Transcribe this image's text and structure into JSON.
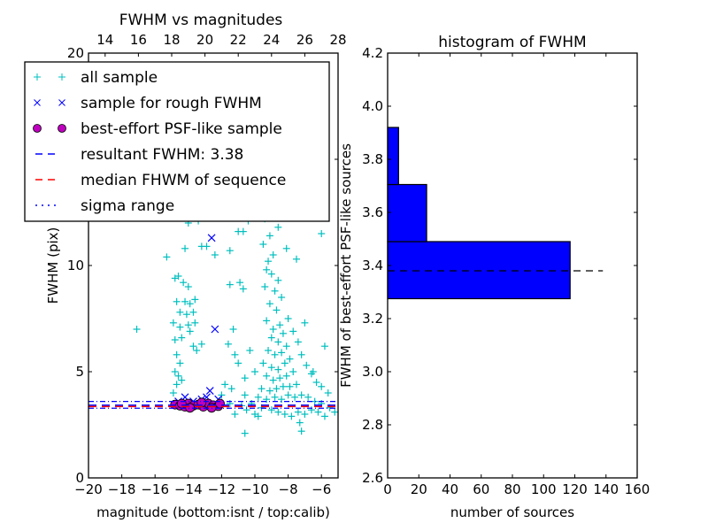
{
  "colors": {
    "all_sample": "#00bfbf",
    "rough_sample": "#0000ff",
    "psf_sample": "#bf00bf",
    "resultant_line": "#0000ff",
    "median_line": "#ff0000",
    "sigma_line": "#0000ff",
    "hist_bar": "#0000ff",
    "hist_line": "#000000"
  },
  "chart_data": [
    {
      "type": "scatter",
      "title": "FWHM vs magnitudes",
      "xlabel": "magnitude (bottom:isnt / top:calib)",
      "ylabel": "FWHM (pix)",
      "xlim": [
        -20,
        -5
      ],
      "ylim": [
        0,
        20
      ],
      "xticks": [
        "−20",
        "−18",
        "−16",
        "−14",
        "−12",
        "−10",
        "−8",
        "−6"
      ],
      "xtick_values": [
        -20,
        -18,
        -16,
        -14,
        -12,
        -10,
        -8,
        -6
      ],
      "yticks": [
        "0",
        "5",
        "10",
        "15",
        "20"
      ],
      "ytick_values": [
        0,
        5,
        10,
        15,
        20
      ],
      "top_xlim": [
        13,
        28
      ],
      "top_xticks": [
        "14",
        "16",
        "18",
        "20",
        "22",
        "24",
        "26",
        "28"
      ],
      "top_xtick_values": [
        14,
        16,
        18,
        20,
        22,
        24,
        26,
        28
      ],
      "legend_position": "upper-left",
      "legend": [
        {
          "label": "all sample",
          "marker": "plus",
          "color_key": "all_sample"
        },
        {
          "label": "sample for rough FWHM",
          "marker": "x",
          "color_key": "rough_sample"
        },
        {
          "label": "best-effort PSF-like sample",
          "marker": "circle",
          "color_key": "psf_sample"
        },
        {
          "label": "resultant FWHM: 3.38",
          "marker": "dashed",
          "color_key": "resultant_line"
        },
        {
          "label": "median FHWM of sequence",
          "marker": "dashed",
          "color_key": "median_line"
        },
        {
          "label": "sigma range",
          "marker": "dashdot",
          "color_key": "sigma_line"
        }
      ],
      "hlines": {
        "resultant": 3.38,
        "median": 3.38,
        "sigma_low": 3.28,
        "sigma_high": 3.6
      },
      "series": [
        {
          "name": "all sample",
          "note": "approximate representative points",
          "points": [
            [
              -17.1,
              7.0
            ],
            [
              -15.3,
              10.4
            ],
            [
              -14.2,
              10.8
            ],
            [
              -14.0,
              12.0
            ],
            [
              -13.4,
              12.1
            ],
            [
              -13.2,
              10.9
            ],
            [
              -12.9,
              10.9
            ],
            [
              -12.4,
              10.5
            ],
            [
              -11.5,
              10.7
            ],
            [
              -11.0,
              11.6
            ],
            [
              -10.7,
              11.6
            ],
            [
              -10.4,
              12.1
            ],
            [
              -9.4,
              12.7
            ],
            [
              -8.6,
              11.8
            ],
            [
              -8.1,
              10.8
            ],
            [
              -7.5,
              10.3
            ],
            [
              -6.0,
              11.5
            ],
            [
              -14.8,
              9.4
            ],
            [
              -14.6,
              9.5
            ],
            [
              -14.3,
              9.2
            ],
            [
              -14.0,
              9.0
            ],
            [
              -14.7,
              8.3
            ],
            [
              -14.2,
              8.3
            ],
            [
              -13.9,
              8.2
            ],
            [
              -13.6,
              8.4
            ],
            [
              -14.5,
              7.8
            ],
            [
              -14.1,
              7.7
            ],
            [
              -13.7,
              7.8
            ],
            [
              -14.9,
              7.3
            ],
            [
              -14.5,
              7.1
            ],
            [
              -14.0,
              7.2
            ],
            [
              -13.6,
              7.3
            ],
            [
              -13.9,
              6.9
            ],
            [
              -14.8,
              6.5
            ],
            [
              -14.4,
              6.6
            ],
            [
              -13.7,
              6.2
            ],
            [
              -13.5,
              6.0
            ],
            [
              -13.2,
              6.3
            ],
            [
              -14.7,
              5.8
            ],
            [
              -14.5,
              5.4
            ],
            [
              -14.8,
              5.0
            ],
            [
              -14.6,
              4.8
            ],
            [
              -14.7,
              4.4
            ],
            [
              -14.4,
              4.6
            ],
            [
              -14.9,
              4.0
            ],
            [
              -11.5,
              9.1
            ],
            [
              -10.9,
              9.2
            ],
            [
              -10.7,
              8.9
            ],
            [
              -11.3,
              7.0
            ],
            [
              -11.6,
              6.3
            ],
            [
              -11.2,
              5.8
            ],
            [
              -11.0,
              5.4
            ],
            [
              -10.6,
              4.7
            ],
            [
              -11.4,
              4.2
            ],
            [
              -10.3,
              6.0
            ],
            [
              -10.0,
              5.0
            ],
            [
              -10.6,
              3.9
            ],
            [
              -12.0,
              3.9
            ],
            [
              -11.8,
              4.4
            ],
            [
              -9.5,
              11.0
            ],
            [
              -9.2,
              10.2
            ],
            [
              -9.0,
              9.6
            ],
            [
              -9.4,
              9.0
            ],
            [
              -8.8,
              8.8
            ],
            [
              -9.1,
              8.2
            ],
            [
              -8.7,
              7.9
            ],
            [
              -9.3,
              7.4
            ],
            [
              -8.9,
              7.0
            ],
            [
              -8.5,
              7.2
            ],
            [
              -9.0,
              6.6
            ],
            [
              -8.6,
              6.4
            ],
            [
              -8.3,
              6.8
            ],
            [
              -9.2,
              6.0
            ],
            [
              -8.8,
              5.8
            ],
            [
              -8.4,
              5.9
            ],
            [
              -8.1,
              6.2
            ],
            [
              -9.5,
              5.4
            ],
            [
              -9.0,
              5.2
            ],
            [
              -8.6,
              5.1
            ],
            [
              -8.2,
              5.4
            ],
            [
              -7.9,
              5.6
            ],
            [
              -9.3,
              4.8
            ],
            [
              -8.9,
              4.6
            ],
            [
              -8.5,
              4.7
            ],
            [
              -8.1,
              4.8
            ],
            [
              -7.7,
              5.0
            ],
            [
              -9.6,
              4.2
            ],
            [
              -9.1,
              4.1
            ],
            [
              -8.7,
              4.2
            ],
            [
              -8.3,
              4.3
            ],
            [
              -7.9,
              4.3
            ],
            [
              -7.5,
              4.4
            ],
            [
              -9.8,
              3.8
            ],
            [
              -9.3,
              3.7
            ],
            [
              -8.8,
              3.8
            ],
            [
              -8.4,
              3.7
            ],
            [
              -8.0,
              3.9
            ],
            [
              -7.6,
              3.8
            ],
            [
              -7.2,
              3.9
            ],
            [
              -6.8,
              3.8
            ],
            [
              -6.4,
              3.6
            ],
            [
              -6.0,
              3.5
            ],
            [
              -5.5,
              3.3
            ],
            [
              -5.2,
              3.1
            ],
            [
              -9.6,
              3.3
            ],
            [
              -9.0,
              3.2
            ],
            [
              -8.6,
              3.1
            ],
            [
              -8.2,
              3.0
            ],
            [
              -7.8,
              2.9
            ],
            [
              -7.4,
              3.1
            ],
            [
              -7.0,
              3.0
            ],
            [
              -6.6,
              3.2
            ],
            [
              -6.2,
              3.1
            ],
            [
              -5.8,
              2.9
            ],
            [
              -10.5,
              3.2
            ],
            [
              -11.2,
              3.0
            ],
            [
              -10.8,
              3.4
            ],
            [
              -11.5,
              3.5
            ],
            [
              -10.2,
              3.5
            ],
            [
              -9.4,
              12.2
            ],
            [
              -9.1,
              11.4
            ],
            [
              -8.9,
              10.5
            ],
            [
              -9.3,
              9.8
            ],
            [
              -8.6,
              9.3
            ],
            [
              -8.4,
              8.5
            ],
            [
              -8.0,
              7.5
            ],
            [
              -7.7,
              6.9
            ],
            [
              -7.4,
              6.4
            ],
            [
              -7.2,
              5.8
            ],
            [
              -6.9,
              5.3
            ],
            [
              -6.6,
              4.9
            ],
            [
              -6.3,
              4.5
            ],
            [
              -6.0,
              4.3
            ],
            [
              -5.6,
              4.0
            ],
            [
              -7.0,
              7.3
            ],
            [
              -5.8,
              6.2
            ],
            [
              -6.5,
              5.0
            ],
            [
              -7.3,
              2.6
            ],
            [
              -7.2,
              2.2
            ],
            [
              -10.6,
              2.1
            ],
            [
              -10.0,
              3.0
            ],
            [
              -9.8,
              2.9
            ]
          ]
        },
        {
          "name": "sample for rough FWHM",
          "points": [
            [
              -12.6,
              11.3
            ],
            [
              -12.4,
              7.0
            ],
            [
              -12.7,
              4.1
            ],
            [
              -14.2,
              3.8
            ],
            [
              -13.2,
              3.7
            ],
            [
              -12.2,
              3.7
            ],
            [
              -13.7,
              3.6
            ],
            [
              -14.6,
              3.6
            ],
            [
              -12.9,
              3.8
            ]
          ]
        },
        {
          "name": "best-effort PSF-like sample",
          "points": [
            [
              -14.8,
              3.45
            ],
            [
              -14.5,
              3.4
            ],
            [
              -14.2,
              3.35
            ],
            [
              -14.0,
              3.5
            ],
            [
              -13.7,
              3.4
            ],
            [
              -13.4,
              3.45
            ],
            [
              -13.1,
              3.35
            ],
            [
              -12.8,
              3.5
            ],
            [
              -12.5,
              3.42
            ],
            [
              -12.2,
              3.38
            ],
            [
              -13.9,
              3.3
            ],
            [
              -13.2,
              3.55
            ],
            [
              -12.6,
              3.3
            ],
            [
              -14.4,
              3.5
            ],
            [
              -12.1,
              3.5
            ]
          ]
        }
      ]
    },
    {
      "type": "bar",
      "orientation": "horizontal",
      "title": "histogram of FWHM",
      "xlabel": "number of sources",
      "ylabel": "FWHM of best-effort PSF-like sources",
      "xlim": [
        0,
        160
      ],
      "ylim": [
        2.6,
        4.2
      ],
      "xticks": [
        "0",
        "20",
        "40",
        "60",
        "80",
        "100",
        "120",
        "140",
        "160"
      ],
      "xtick_values": [
        0,
        20,
        40,
        60,
        80,
        100,
        120,
        140,
        160
      ],
      "yticks": [
        "2.6",
        "2.8",
        "3.0",
        "3.2",
        "3.4",
        "3.6",
        "3.8",
        "4.0",
        "4.2"
      ],
      "ytick_values": [
        2.6,
        2.8,
        3.0,
        3.2,
        3.4,
        3.6,
        3.8,
        4.0,
        4.2
      ],
      "bins": [
        {
          "low": 3.275,
          "high": 3.49,
          "count": 117
        },
        {
          "low": 3.49,
          "high": 3.705,
          "count": 25
        },
        {
          "low": 3.705,
          "high": 3.92,
          "count": 7
        }
      ],
      "hline": {
        "value": 3.38,
        "xmax": 138,
        "style": "dashed"
      }
    }
  ]
}
